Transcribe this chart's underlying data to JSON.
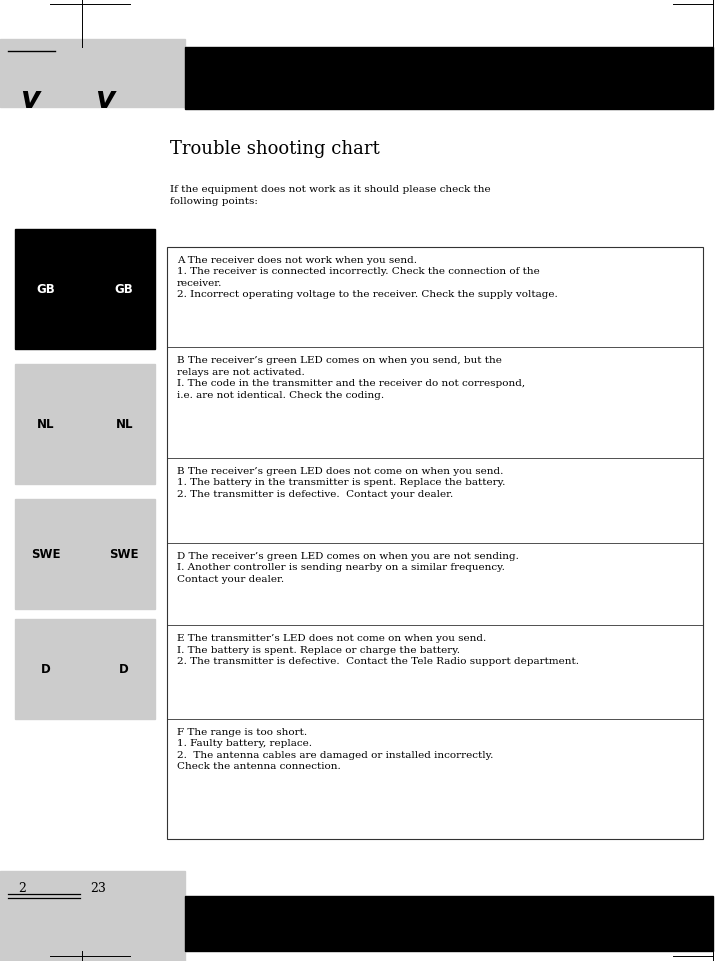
{
  "title": "Trouble shooting chart",
  "intro": "If the equipment does not work as it should please check the\nfollowing points:",
  "page_numbers": [
    "2",
    "23"
  ],
  "lang_labels": [
    {
      "text": "GB",
      "bg": "#000000",
      "fg": "#ffffff"
    },
    {
      "text": "NL",
      "bg": "#cccccc",
      "fg": "#000000"
    },
    {
      "text": "SWE",
      "bg": "#cccccc",
      "fg": "#000000"
    },
    {
      "text": "D",
      "bg": "#cccccc",
      "fg": "#000000"
    }
  ],
  "sections": [
    {
      "header": "A The receiver does not work when you send.",
      "body": "1. The receiver is connected incorrectly. Check the connection of the\nreceiver.\n2. Incorrect operating voltage to the receiver. Check the supply voltage."
    },
    {
      "header": "B The receiver’s green LED comes on when you send, but the\nrelays are not activated.",
      "body": "I. The code in the transmitter and the receiver do not correspond,\ni.e. are not identical. Check the coding."
    },
    {
      "header": "B The receiver’s green LED does not come on when you send.",
      "body": "1. The battery in the transmitter is spent. Replace the battery.\n2. The transmitter is defective.  Contact your dealer."
    },
    {
      "header": "D The receiver’s green LED comes on when you are not sending.",
      "body": "I. Another controller is sending nearby on a similar frequency.\nContact your dealer."
    },
    {
      "header": "E The transmitter’s LED does not come on when you send.",
      "body": "I. The battery is spent. Replace or charge the battery.\n2. The transmitter is defective.  Contact the Tele Radio support department."
    },
    {
      "header": "F The range is too short.",
      "body": "1. Faulty battery, replace.\n2.  The antenna cables are damaged or installed incorrectly.\nCheck the antenna connection."
    }
  ],
  "bg_color": "#ffffff",
  "black": "#000000",
  "grey_light": "#cccccc",
  "grey_med": "#bbbbbb",
  "border_color": "#333333",
  "font_size_title": 13,
  "font_size_body": 7.5,
  "font_size_lang": 8.5
}
